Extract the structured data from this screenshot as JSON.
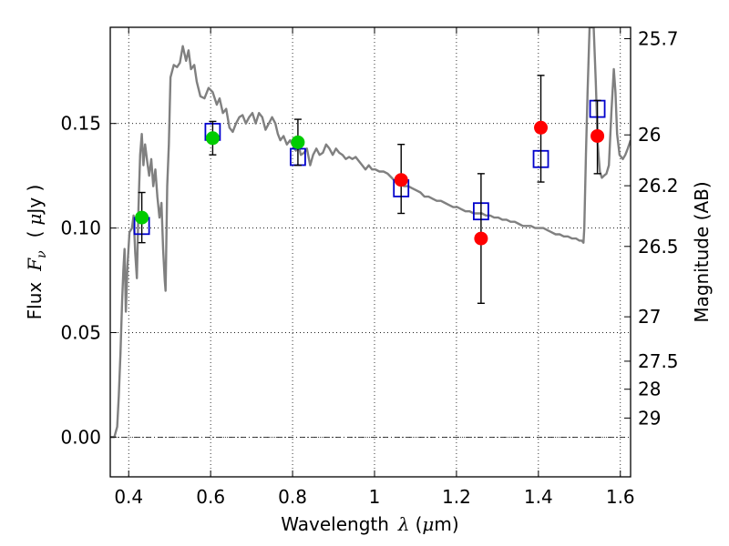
{
  "chart_data": {
    "type": "scatter",
    "title": "",
    "xlabel": "Wavelength",
    "xlabel_symbol": "λ",
    "xlabel_unit_open": "(",
    "xlabel_unit_mu": "μ",
    "xlabel_unit_rest": "m)",
    "ylabel": "Flux",
    "ylabel_symbol": "F",
    "ylabel_subscript": "ν",
    "ylabel_unit_open": "(",
    "ylabel_unit_mu": "μ",
    "ylabel_unit_rest": "Jy )",
    "y2label": "Magnitude (AB)",
    "xlim": [
      0.355,
      1.625
    ],
    "ylim": [
      -0.019,
      0.196
    ],
    "grid": true,
    "x_ticks": [
      0.4,
      0.6,
      0.8,
      1.0,
      1.2,
      1.4,
      1.6
    ],
    "x_tick_labels": [
      "0.4",
      "0.6",
      "0.8",
      "1",
      "1.2",
      "1.4",
      "1.6"
    ],
    "y_ticks": [
      0.0,
      0.05,
      0.1,
      0.15
    ],
    "y_tick_labels": [
      "0.00",
      "0.05",
      "0.10",
      "0.15"
    ],
    "y2_ticks": [
      {
        "mag": 25.7,
        "label": "25.7"
      },
      {
        "mag": 26.0,
        "label": "26"
      },
      {
        "mag": 26.2,
        "label": "26.2"
      },
      {
        "mag": 26.5,
        "label": "26.5"
      },
      {
        "mag": 27.0,
        "label": "27"
      },
      {
        "mag": 27.5,
        "label": "27.5"
      },
      {
        "mag": 28.0,
        "label": "28"
      },
      {
        "mag": 29.0,
        "label": "29"
      }
    ],
    "colors": {
      "sed": "#808080",
      "green_points": "#00cc00",
      "red_points": "#ff0000",
      "model_boxes": "#0000cc",
      "errorbars": "#000000",
      "zero_line": "#000000"
    },
    "series": [
      {
        "kind": "line",
        "points": [
          [
            0.355,
            0.0
          ],
          [
            0.365,
            0.0
          ],
          [
            0.372,
            0.005
          ],
          [
            0.376,
            0.02
          ],
          [
            0.38,
            0.04
          ],
          [
            0.384,
            0.065
          ],
          [
            0.387,
            0.08
          ],
          [
            0.39,
            0.09
          ],
          [
            0.393,
            0.06
          ],
          [
            0.397,
            0.082
          ],
          [
            0.402,
            0.098
          ],
          [
            0.408,
            0.1
          ],
          [
            0.412,
            0.106
          ],
          [
            0.416,
            0.088
          ],
          [
            0.42,
            0.076
          ],
          [
            0.424,
            0.11
          ],
          [
            0.428,
            0.135
          ],
          [
            0.432,
            0.145
          ],
          [
            0.436,
            0.13
          ],
          [
            0.44,
            0.14
          ],
          [
            0.445,
            0.132
          ],
          [
            0.45,
            0.125
          ],
          [
            0.455,
            0.133
          ],
          [
            0.46,
            0.12
          ],
          [
            0.465,
            0.128
          ],
          [
            0.47,
            0.115
          ],
          [
            0.475,
            0.105
          ],
          [
            0.48,
            0.112
          ],
          [
            0.484,
            0.09
          ],
          [
            0.488,
            0.075
          ],
          [
            0.49,
            0.07
          ],
          [
            0.494,
            0.12
          ],
          [
            0.498,
            0.14
          ],
          [
            0.502,
            0.172
          ],
          [
            0.51,
            0.178
          ],
          [
            0.518,
            0.177
          ],
          [
            0.525,
            0.179
          ],
          [
            0.532,
            0.187
          ],
          [
            0.54,
            0.18
          ],
          [
            0.546,
            0.185
          ],
          [
            0.552,
            0.176
          ],
          [
            0.56,
            0.178
          ],
          [
            0.566,
            0.17
          ],
          [
            0.575,
            0.163
          ],
          [
            0.585,
            0.162
          ],
          [
            0.595,
            0.167
          ],
          [
            0.605,
            0.165
          ],
          [
            0.615,
            0.159
          ],
          [
            0.622,
            0.162
          ],
          [
            0.63,
            0.155
          ],
          [
            0.638,
            0.157
          ],
          [
            0.646,
            0.148
          ],
          [
            0.654,
            0.146
          ],
          [
            0.662,
            0.15
          ],
          [
            0.67,
            0.153
          ],
          [
            0.678,
            0.154
          ],
          [
            0.686,
            0.15
          ],
          [
            0.694,
            0.153
          ],
          [
            0.702,
            0.155
          ],
          [
            0.71,
            0.15
          ],
          [
            0.718,
            0.155
          ],
          [
            0.726,
            0.153
          ],
          [
            0.734,
            0.147
          ],
          [
            0.742,
            0.15
          ],
          [
            0.75,
            0.153
          ],
          [
            0.758,
            0.15
          ],
          [
            0.764,
            0.145
          ],
          [
            0.77,
            0.142
          ],
          [
            0.778,
            0.144
          ],
          [
            0.786,
            0.14
          ],
          [
            0.794,
            0.142
          ],
          [
            0.802,
            0.139
          ],
          [
            0.808,
            0.137
          ],
          [
            0.814,
            0.14
          ],
          [
            0.82,
            0.135
          ],
          [
            0.828,
            0.136
          ],
          [
            0.835,
            0.138
          ],
          [
            0.843,
            0.13
          ],
          [
            0.85,
            0.135
          ],
          [
            0.858,
            0.138
          ],
          [
            0.866,
            0.135
          ],
          [
            0.874,
            0.136
          ],
          [
            0.882,
            0.14
          ],
          [
            0.89,
            0.138
          ],
          [
            0.898,
            0.135
          ],
          [
            0.906,
            0.138
          ],
          [
            0.914,
            0.136
          ],
          [
            0.922,
            0.135
          ],
          [
            0.93,
            0.133
          ],
          [
            0.938,
            0.134
          ],
          [
            0.946,
            0.133
          ],
          [
            0.954,
            0.134
          ],
          [
            0.962,
            0.132
          ],
          [
            0.97,
            0.13
          ],
          [
            0.978,
            0.128
          ],
          [
            0.986,
            0.13
          ],
          [
            0.994,
            0.128
          ],
          [
            1.002,
            0.128
          ],
          [
            1.012,
            0.127
          ],
          [
            1.022,
            0.127
          ],
          [
            1.032,
            0.126
          ],
          [
            1.042,
            0.124
          ],
          [
            1.052,
            0.122
          ],
          [
            1.062,
            0.122
          ],
          [
            1.072,
            0.12
          ],
          [
            1.082,
            0.12
          ],
          [
            1.092,
            0.119
          ],
          [
            1.102,
            0.118
          ],
          [
            1.112,
            0.117
          ],
          [
            1.122,
            0.115
          ],
          [
            1.132,
            0.115
          ],
          [
            1.142,
            0.114
          ],
          [
            1.152,
            0.113
          ],
          [
            1.162,
            0.113
          ],
          [
            1.172,
            0.112
          ],
          [
            1.182,
            0.111
          ],
          [
            1.192,
            0.11
          ],
          [
            1.202,
            0.11
          ],
          [
            1.212,
            0.109
          ],
          [
            1.222,
            0.108
          ],
          [
            1.232,
            0.108
          ],
          [
            1.242,
            0.107
          ],
          [
            1.252,
            0.107
          ],
          [
            1.262,
            0.107
          ],
          [
            1.272,
            0.106
          ],
          [
            1.282,
            0.106
          ],
          [
            1.292,
            0.105
          ],
          [
            1.302,
            0.105
          ],
          [
            1.312,
            0.104
          ],
          [
            1.322,
            0.104
          ],
          [
            1.332,
            0.103
          ],
          [
            1.342,
            0.103
          ],
          [
            1.352,
            0.102
          ],
          [
            1.362,
            0.101
          ],
          [
            1.372,
            0.101
          ],
          [
            1.382,
            0.101
          ],
          [
            1.392,
            0.1
          ],
          [
            1.402,
            0.1
          ],
          [
            1.412,
            0.1
          ],
          [
            1.422,
            0.099
          ],
          [
            1.432,
            0.098
          ],
          [
            1.442,
            0.097
          ],
          [
            1.452,
            0.097
          ],
          [
            1.462,
            0.096
          ],
          [
            1.472,
            0.096
          ],
          [
            1.482,
            0.095
          ],
          [
            1.492,
            0.095
          ],
          [
            1.5,
            0.094
          ],
          [
            1.506,
            0.094
          ],
          [
            1.51,
            0.093
          ],
          [
            1.512,
            0.1
          ],
          [
            1.516,
            0.135
          ],
          [
            1.52,
            0.165
          ],
          [
            1.525,
            0.196
          ],
          [
            1.535,
            0.196
          ],
          [
            1.54,
            0.17
          ],
          [
            1.545,
            0.14
          ],
          [
            1.55,
            0.127
          ],
          [
            1.555,
            0.124
          ],
          [
            1.56,
            0.125
          ],
          [
            1.566,
            0.126
          ],
          [
            1.572,
            0.13
          ],
          [
            1.578,
            0.155
          ],
          [
            1.584,
            0.176
          ],
          [
            1.588,
            0.165
          ],
          [
            1.592,
            0.145
          ],
          [
            1.598,
            0.135
          ],
          [
            1.606,
            0.133
          ],
          [
            1.612,
            0.135
          ],
          [
            1.618,
            0.138
          ],
          [
            1.625,
            0.142
          ]
        ]
      },
      {
        "kind": "model_boxes",
        "points": [
          [
            0.432,
            0.101
          ],
          [
            0.605,
            0.146
          ],
          [
            0.813,
            0.134
          ],
          [
            1.065,
            0.119
          ],
          [
            1.26,
            0.108
          ],
          [
            1.406,
            0.133
          ],
          [
            1.544,
            0.157
          ]
        ]
      },
      {
        "kind": "errorbars",
        "points": [
          {
            "x": 0.432,
            "y": 0.105,
            "lo": 0.093,
            "hi": 0.117
          },
          {
            "x": 0.605,
            "y": 0.143,
            "lo": 0.135,
            "hi": 0.151
          },
          {
            "x": 0.813,
            "y": 0.141,
            "lo": 0.13,
            "hi": 0.152
          },
          {
            "x": 1.065,
            "y": 0.123,
            "lo": 0.107,
            "hi": 0.14
          },
          {
            "x": 1.26,
            "y": 0.095,
            "lo": 0.064,
            "hi": 0.126
          },
          {
            "x": 1.406,
            "y": 0.148,
            "lo": 0.122,
            "hi": 0.173
          },
          {
            "x": 1.544,
            "y": 0.144,
            "lo": 0.126,
            "hi": 0.161
          }
        ]
      },
      {
        "kind": "points",
        "color_key": "green_points",
        "points": [
          [
            0.432,
            0.105
          ],
          [
            0.605,
            0.143
          ],
          [
            0.813,
            0.141
          ]
        ]
      },
      {
        "kind": "points",
        "color_key": "red_points",
        "points": [
          [
            1.065,
            0.123
          ],
          [
            1.26,
            0.095
          ],
          [
            1.406,
            0.148
          ],
          [
            1.544,
            0.144
          ]
        ]
      }
    ]
  }
}
